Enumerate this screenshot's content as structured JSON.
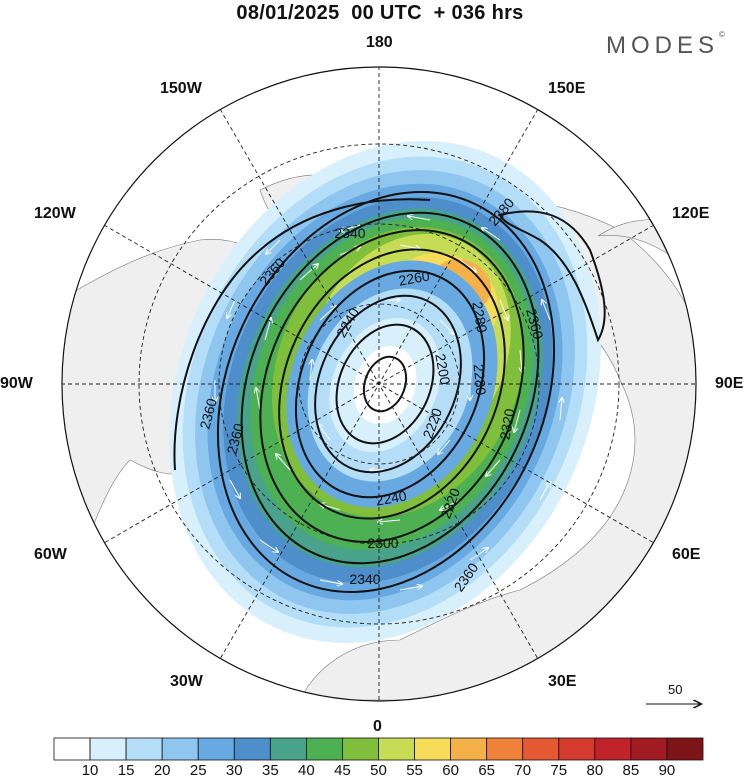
{
  "title": "08/01/2025  00 UTC  + 036 hrs",
  "brand": "MODES",
  "brand_mark": "©",
  "longitude_labels": {
    "top": "180",
    "top_left": "150W",
    "top_right": "150E",
    "upper_left": "120W",
    "upper_right": "120E",
    "left": "90W",
    "right": "90E",
    "lower_left": "60W",
    "lower_right": "60E",
    "bottom_left": "30W",
    "bottom_right": "30E",
    "bottom": "0"
  },
  "contour_labels": [
    "2380",
    "2340",
    "2360",
    "2260",
    "2280",
    "2240",
    "2360",
    "2200",
    "2280",
    "2220",
    "2320",
    "2360",
    "2320",
    "2240",
    "2300",
    "2340",
    "2360",
    "2360"
  ],
  "reference_vector": "50",
  "colorbar": {
    "ticks": [
      "10",
      "15",
      "20",
      "25",
      "30",
      "35",
      "40",
      "45",
      "50",
      "55",
      "60",
      "65",
      "70",
      "75",
      "80",
      "85",
      "90"
    ],
    "colors": [
      "#ffffff",
      "#d8f0fb",
      "#b4def8",
      "#8ec6ef",
      "#67a9e0",
      "#4d8ecb",
      "#49a38b",
      "#4db052",
      "#7fbf3c",
      "#c7dc55",
      "#f7dc59",
      "#f4b14a",
      "#f0813a",
      "#e55a32",
      "#d53a2f",
      "#c0232a",
      "#a01b22",
      "#7d1418"
    ]
  }
}
